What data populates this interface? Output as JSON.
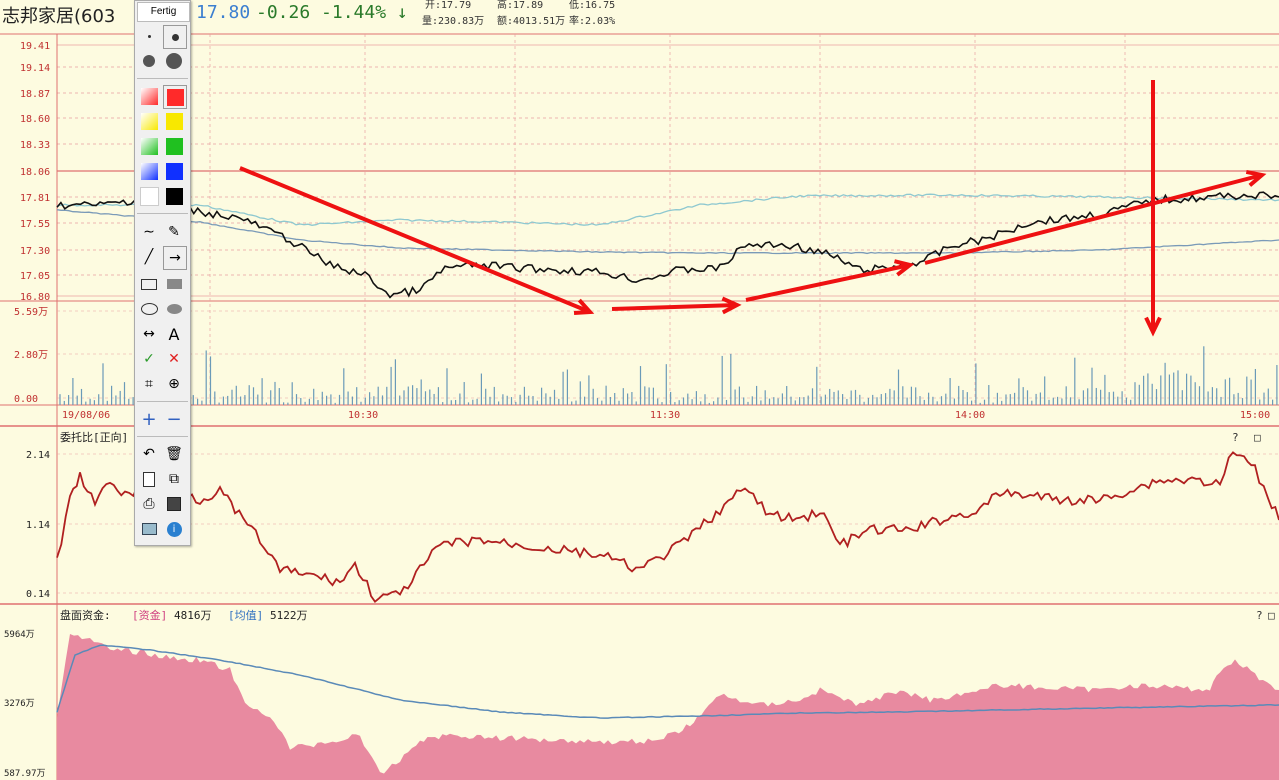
{
  "header": {
    "title": "志邦家居(603",
    "price": "17.80",
    "change": "-0.26",
    "change_pct": "-1.44%",
    "arrow": "↓",
    "open": "开:17.79",
    "high": "高:17.89",
    "low": "低:16.75",
    "volume": "量:230.83万",
    "amount": "额:4013.51万",
    "turnover": "率:2.03%"
  },
  "toolbar": {
    "title": "Fertig",
    "colors": [
      "#ff2a2a",
      "#f8e800",
      "#20c020",
      "#1030ff",
      "#ffffff",
      "#000000"
    ],
    "text_tool": "A",
    "confirm_icon": "✓",
    "cancel_icon": "✕"
  },
  "price_panel": {
    "y_labels": [
      "19.41",
      "19.14",
      "18.87",
      "18.60",
      "18.33",
      "18.06",
      "17.81",
      "17.55",
      "17.30",
      "17.05",
      "16.80"
    ],
    "x_labels": [
      "19/08/06",
      "10:30",
      "11:30",
      "14:00",
      "15:00"
    ],
    "volume_labels": [
      "5.59万",
      "2.80万",
      "0.00"
    ]
  },
  "ratio_panel": {
    "title": "委托比[正向]",
    "y_labels": [
      "2.14",
      "1.14",
      "0.14"
    ],
    "icons": [
      "?",
      "□"
    ]
  },
  "fund_panel": {
    "title": "盘面资金:",
    "fund_label": "[资金]",
    "fund_value": "4816万",
    "avg_label": "[均值]",
    "avg_value": "5122万",
    "y_labels": [
      "5964万",
      "3276万",
      "587.97万"
    ],
    "icons": [
      "?",
      "□"
    ]
  },
  "colors": {
    "background": "#fdfbe0",
    "grid": "#e8a0a0",
    "price_line": "#111111",
    "avg_line": "#7fb0c8",
    "ratio_line": "#b02020",
    "fund_fill": "#e88aa0",
    "annotation": "#ee1111"
  }
}
